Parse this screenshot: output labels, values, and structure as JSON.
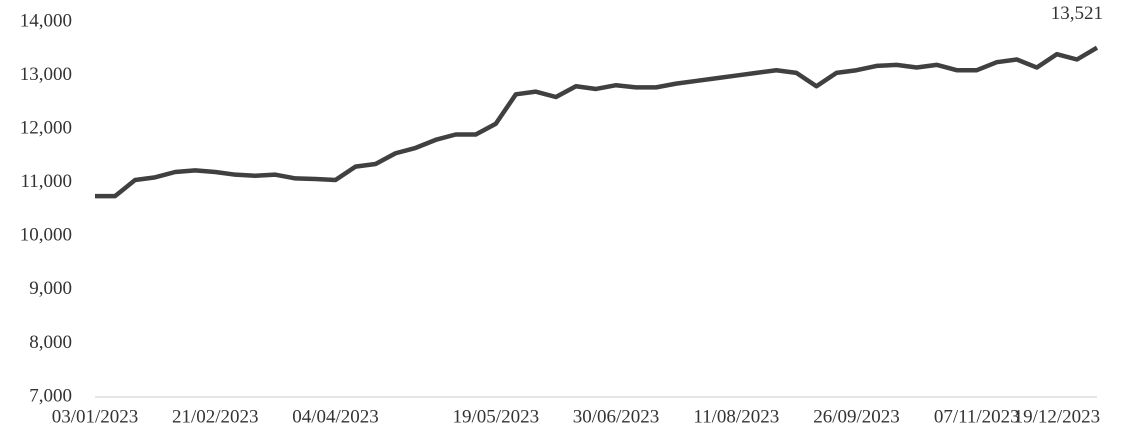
{
  "chart_data": {
    "type": "line",
    "categories": [
      "03/01/2023",
      null,
      null,
      null,
      null,
      null,
      "21/02/2023",
      null,
      null,
      null,
      null,
      null,
      "04/04/2023",
      null,
      null,
      null,
      null,
      null,
      null,
      null,
      "19/05/2023",
      null,
      null,
      null,
      null,
      null,
      "30/06/2023",
      null,
      null,
      null,
      null,
      null,
      "11/08/2023",
      null,
      null,
      null,
      null,
      null,
      "26/09/2023",
      null,
      null,
      null,
      null,
      null,
      "07/11/2023",
      null,
      null,
      null,
      "19/12/2023",
      null,
      null
    ],
    "series": [
      {
        "name": null,
        "color": "#404040",
        "values": [
          10750,
          10750,
          11050,
          11100,
          11200,
          11230,
          11200,
          11150,
          11130,
          11150,
          11080,
          11070,
          11050,
          11300,
          11350,
          11550,
          11650,
          11800,
          11900,
          11900,
          12100,
          12650,
          12700,
          12600,
          12800,
          12750,
          12820,
          12780,
          12780,
          12850,
          12900,
          12950,
          13000,
          13050,
          13100,
          13050,
          12800,
          13050,
          13100,
          13180,
          13200,
          13150,
          13200,
          13100,
          13100,
          13250,
          13300,
          13150,
          13400,
          13300,
          13521
        ],
        "value_labels": [
          null,
          null,
          null,
          null,
          null,
          null,
          null,
          null,
          null,
          null,
          null,
          null,
          null,
          null,
          null,
          null,
          null,
          null,
          null,
          null,
          null,
          null,
          null,
          null,
          null,
          null,
          null,
          null,
          null,
          null,
          null,
          null,
          null,
          null,
          null,
          null,
          null,
          null,
          null,
          null,
          null,
          null,
          null,
          null,
          null,
          null,
          null,
          null,
          null,
          null,
          "13,521"
        ]
      }
    ],
    "ylim": [
      7000,
      14000
    ],
    "yticks": [
      {
        "value": 7000,
        "label": "7,000"
      },
      {
        "value": 8000,
        "label": "8,000"
      },
      {
        "value": 9000,
        "label": "9,000"
      },
      {
        "value": 10000,
        "label": "10,000"
      },
      {
        "value": 11000,
        "label": "11,000"
      },
      {
        "value": 12000,
        "label": "12,000"
      },
      {
        "value": 13000,
        "label": "13,000"
      },
      {
        "value": 14000,
        "label": "14,000"
      }
    ],
    "grid": false
  }
}
